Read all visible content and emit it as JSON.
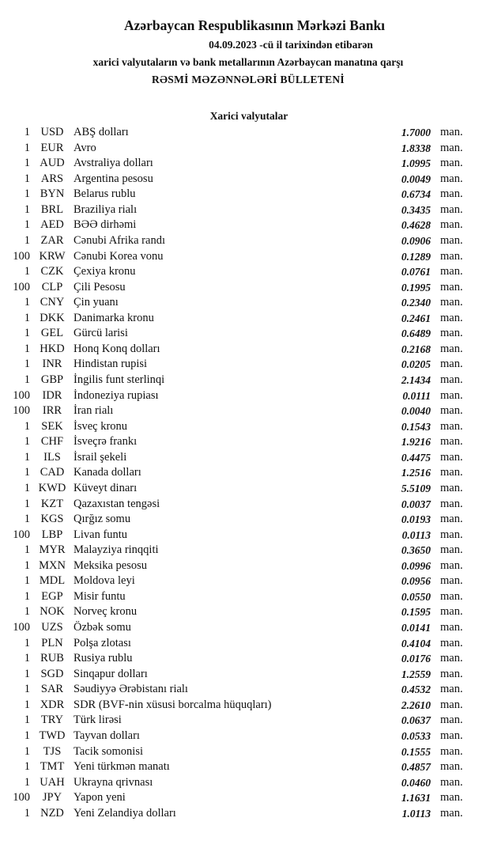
{
  "header": {
    "title": "Azərbaycan Respublikasının Mərkəzi Bankı",
    "date_line": "04.09.2023  -cü il tarixindən etibarən",
    "subtitle": "xarici valyutaların və bank metallarının Azərbaycan manatına qarşı",
    "bulletin": "RƏSMİ MƏZƏNNƏLƏRİ BÜLLETENİ"
  },
  "section_title": "Xarici valyutalar",
  "unit": "man.",
  "rates": [
    {
      "amount": "1",
      "code": "USD",
      "name": "ABŞ dolları",
      "rate": "1.7000"
    },
    {
      "amount": "1",
      "code": "EUR",
      "name": "Avro",
      "rate": "1.8338"
    },
    {
      "amount": "1",
      "code": "AUD",
      "name": "Avstraliya dolları",
      "rate": "1.0995"
    },
    {
      "amount": "1",
      "code": "ARS",
      "name": "Argentina pesosu",
      "rate": "0.0049"
    },
    {
      "amount": "1",
      "code": "BYN",
      "name": "Belarus rublu",
      "rate": "0.6734"
    },
    {
      "amount": "1",
      "code": "BRL",
      "name": "Braziliya rialı",
      "rate": "0.3435"
    },
    {
      "amount": "1",
      "code": "AED",
      "name": "BƏƏ dirhəmi",
      "rate": "0.4628"
    },
    {
      "amount": "1",
      "code": "ZAR",
      "name": "Cənubi Afrika randı",
      "rate": "0.0906"
    },
    {
      "amount": "100",
      "code": "KRW",
      "name": "Cənubi Korea vonu",
      "rate": "0.1289"
    },
    {
      "amount": "1",
      "code": "CZK",
      "name": "Çexiya kronu",
      "rate": "0.0761"
    },
    {
      "amount": "100",
      "code": "CLP",
      "name": "Çili Pesosu",
      "rate": "0.1995"
    },
    {
      "amount": "1",
      "code": "CNY",
      "name": "Çin yuanı",
      "rate": "0.2340"
    },
    {
      "amount": "1",
      "code": "DKK",
      "name": "Danimarka kronu",
      "rate": "0.2461"
    },
    {
      "amount": "1",
      "code": "GEL",
      "name": "Gürcü larisi",
      "rate": "0.6489"
    },
    {
      "amount": "1",
      "code": "HKD",
      "name": "Honq Konq dolları",
      "rate": "0.2168"
    },
    {
      "amount": "1",
      "code": "INR",
      "name": "Hindistan rupisi",
      "rate": "0.0205"
    },
    {
      "amount": "1",
      "code": "GBP",
      "name": "İngilis funt sterlinqi",
      "rate": "2.1434"
    },
    {
      "amount": "100",
      "code": "IDR",
      "name": "İndoneziya rupiası",
      "rate": "0.0111"
    },
    {
      "amount": "100",
      "code": "IRR",
      "name": "İran rialı",
      "rate": "0.0040"
    },
    {
      "amount": "1",
      "code": "SEK",
      "name": "İsveç kronu",
      "rate": "0.1543"
    },
    {
      "amount": "1",
      "code": "CHF",
      "name": "İsveçrə frankı",
      "rate": "1.9216"
    },
    {
      "amount": "1",
      "code": "ILS",
      "name": "İsrail şekeli",
      "rate": "0.4475"
    },
    {
      "amount": "1",
      "code": "CAD",
      "name": "Kanada dolları",
      "rate": "1.2516"
    },
    {
      "amount": "1",
      "code": "KWD",
      "name": "Küveyt dinarı",
      "rate": "5.5109"
    },
    {
      "amount": "1",
      "code": "KZT",
      "name": "Qazaxıstan tengəsi",
      "rate": "0.0037"
    },
    {
      "amount": "1",
      "code": "KGS",
      "name": "Qırğız somu",
      "rate": "0.0193"
    },
    {
      "amount": "100",
      "code": "LBP",
      "name": "Livan funtu",
      "rate": "0.0113"
    },
    {
      "amount": "1",
      "code": "MYR",
      "name": "Malayziya rinqqiti",
      "rate": "0.3650"
    },
    {
      "amount": "1",
      "code": "MXN",
      "name": "Meksika pesosu",
      "rate": "0.0996"
    },
    {
      "amount": "1",
      "code": "MDL",
      "name": "Moldova leyi",
      "rate": "0.0956"
    },
    {
      "amount": "1",
      "code": "EGP",
      "name": "Misir funtu",
      "rate": "0.0550"
    },
    {
      "amount": "1",
      "code": "NOK",
      "name": "Norveç kronu",
      "rate": "0.1595"
    },
    {
      "amount": "100",
      "code": "UZS",
      "name": "Özbək somu",
      "rate": "0.0141"
    },
    {
      "amount": "1",
      "code": "PLN",
      "name": "Polşa zlotası",
      "rate": "0.4104"
    },
    {
      "amount": "1",
      "code": "RUB",
      "name": "Rusiya rublu",
      "rate": "0.0176"
    },
    {
      "amount": "1",
      "code": "SGD",
      "name": "Sinqapur dolları",
      "rate": "1.2559"
    },
    {
      "amount": "1",
      "code": "SAR",
      "name": "Səudiyyə Ərəbistanı rialı",
      "rate": "0.4532"
    },
    {
      "amount": "1",
      "code": "XDR",
      "name": "SDR (BVF-nin xüsusi borcalma hüquqları)",
      "rate": "2.2610"
    },
    {
      "amount": "1",
      "code": "TRY",
      "name": "Türk lirəsi",
      "rate": "0.0637"
    },
    {
      "amount": "1",
      "code": "TWD",
      "name": "Tayvan dolları",
      "rate": "0.0533"
    },
    {
      "amount": "1",
      "code": "TJS",
      "name": "Tacik somonisi",
      "rate": "0.1555"
    },
    {
      "amount": "1",
      "code": "TMT",
      "name": "Yeni türkmən manatı",
      "rate": "0.4857"
    },
    {
      "amount": "1",
      "code": "UAH",
      "name": "Ukrayna qrivnası",
      "rate": "0.0460"
    },
    {
      "amount": "100",
      "code": "JPY",
      "name": "Yapon yeni",
      "rate": "1.1631"
    },
    {
      "amount": "1",
      "code": "NZD",
      "name": "Yeni Zelandiya dolları",
      "rate": "1.0113"
    }
  ]
}
